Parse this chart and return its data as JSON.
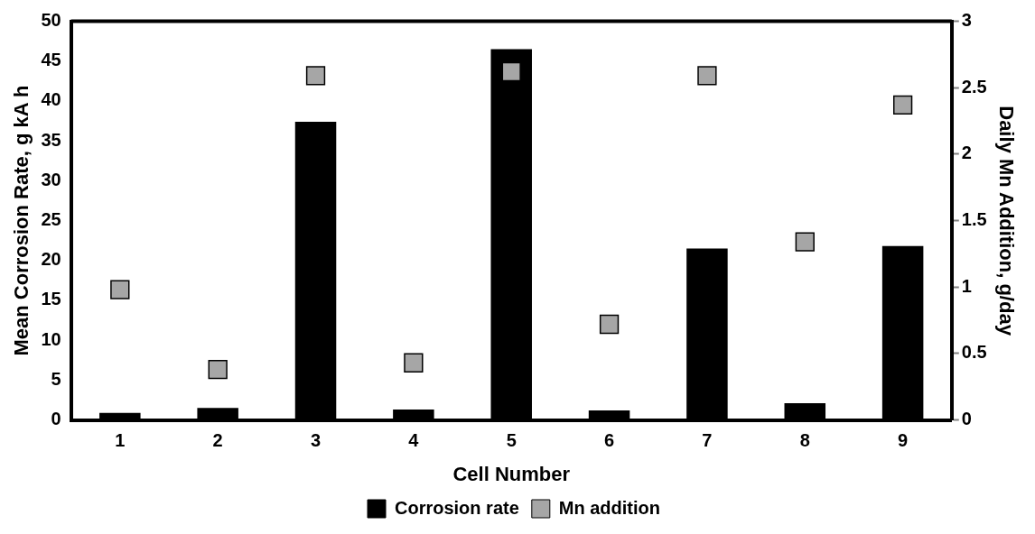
{
  "chart_data": {
    "type": "bar",
    "xlabel": "Cell Number",
    "ylabel": "Mean Corrosion Rate, g kA h",
    "y2label": "Daily Mn Addition, g/day",
    "categories": [
      "1",
      "2",
      "3",
      "4",
      "5",
      "6",
      "7",
      "8",
      "9"
    ],
    "series": [
      {
        "name": "Corrosion rate",
        "color": "#000000",
        "values": [
          0.9,
          1.5,
          37.4,
          1.3,
          46.5,
          1.2,
          21.5,
          2.1,
          21.8
        ]
      },
      {
        "name": "Mn addition",
        "type": "scatter",
        "axis": "y2",
        "color": "#a6a6a6",
        "marker": "square",
        "x": [
          "1",
          "2",
          "3",
          "4",
          "5",
          "6",
          "7",
          "8",
          "9"
        ],
        "values": [
          0.98,
          0.38,
          2.59,
          0.43,
          2.62,
          0.72,
          2.59,
          1.34,
          2.37
        ]
      }
    ],
    "ylim": [
      0,
      50
    ],
    "yticks": [
      0,
      5,
      10,
      15,
      20,
      25,
      30,
      35,
      40,
      45,
      50
    ],
    "y2lim": [
      0,
      3
    ],
    "y2ticks": [
      0,
      0.5,
      1,
      1.5,
      2,
      2.5,
      3
    ],
    "grid": false,
    "legend": "bottom"
  }
}
